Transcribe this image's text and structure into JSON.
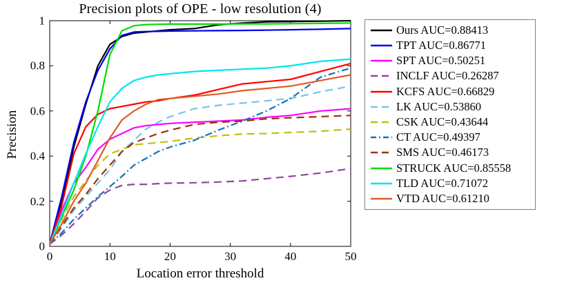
{
  "chart_data": {
    "type": "line",
    "title": "Precision plots of OPE - low resolution (4)",
    "xlabel": "Location error threshold",
    "ylabel": "Precision",
    "xlim": [
      0,
      50
    ],
    "ylim": [
      0,
      1
    ],
    "xticks": [
      "0",
      "10",
      "20",
      "30",
      "40",
      "50"
    ],
    "yticks": [
      "0",
      "0.2",
      "0.4",
      "0.6",
      "0.8",
      "1"
    ],
    "grid": false,
    "legend_position": "outside-right",
    "x": [
      0,
      2,
      4,
      6,
      8,
      10,
      12,
      14,
      16,
      18,
      20,
      24,
      28,
      32,
      36,
      40,
      45,
      50
    ],
    "series": [
      {
        "name": "Ours",
        "label": "Ours AUC=0.88413",
        "auc": 0.88413,
        "color": "#000000",
        "style": "solid",
        "values": [
          0.01,
          0.2,
          0.44,
          0.63,
          0.8,
          0.895,
          0.93,
          0.945,
          0.95,
          0.955,
          0.96,
          0.965,
          0.982,
          0.99,
          0.995,
          0.996,
          0.998,
          1.0
        ]
      },
      {
        "name": "TPT",
        "label": "TPT AUC=0.86771",
        "auc": 0.86771,
        "color": "#0000ee",
        "style": "solid",
        "values": [
          0.01,
          0.22,
          0.46,
          0.64,
          0.78,
          0.875,
          0.935,
          0.95,
          0.952,
          0.953,
          0.954,
          0.955,
          0.956,
          0.957,
          0.958,
          0.96,
          0.962,
          0.965
        ]
      },
      {
        "name": "SPT",
        "label": "SPT AUC=0.50251",
        "auc": 0.50251,
        "color": "#ff00ff",
        "style": "solid",
        "values": [
          0.01,
          0.16,
          0.28,
          0.35,
          0.43,
          0.475,
          0.5,
          0.525,
          0.535,
          0.54,
          0.545,
          0.55,
          0.555,
          0.56,
          0.572,
          0.58,
          0.6,
          0.61
        ]
      },
      {
        "name": "INCLF",
        "label": "INCLF AUC=0.26287",
        "auc": 0.26287,
        "color": "#9146a0",
        "style": "dashed",
        "values": [
          0.01,
          0.05,
          0.1,
          0.155,
          0.215,
          0.25,
          0.27,
          0.275,
          0.275,
          0.278,
          0.28,
          0.282,
          0.285,
          0.29,
          0.3,
          0.31,
          0.325,
          0.345
        ]
      },
      {
        "name": "KCFS",
        "label": "KCFS AUC=0.66829",
        "auc": 0.66829,
        "color": "#ff0000",
        "style": "solid",
        "values": [
          0.01,
          0.18,
          0.41,
          0.53,
          0.585,
          0.61,
          0.62,
          0.63,
          0.64,
          0.645,
          0.655,
          0.67,
          0.695,
          0.72,
          0.73,
          0.74,
          0.775,
          0.81
        ]
      },
      {
        "name": "LK",
        "label": "LK AUC=0.53860",
        "auc": 0.5386,
        "color": "#76c4e8",
        "style": "dashed",
        "values": [
          0.01,
          0.08,
          0.16,
          0.22,
          0.28,
          0.34,
          0.42,
          0.47,
          0.52,
          0.55,
          0.575,
          0.61,
          0.625,
          0.635,
          0.645,
          0.655,
          0.685,
          0.71
        ]
      },
      {
        "name": "CSK",
        "label": "CSK AUC=0.43644",
        "auc": 0.43644,
        "color": "#bfbf12",
        "style": "dashed",
        "values": [
          0.01,
          0.12,
          0.22,
          0.29,
          0.36,
          0.41,
          0.43,
          0.45,
          0.455,
          0.46,
          0.465,
          0.48,
          0.49,
          0.498,
          0.5,
          0.505,
          0.51,
          0.52
        ]
      },
      {
        "name": "CT",
        "label": "CT AUC=0.49397",
        "auc": 0.49397,
        "color": "#1272b8",
        "style": "dashdot",
        "values": [
          0.01,
          0.06,
          0.12,
          0.17,
          0.22,
          0.265,
          0.31,
          0.36,
          0.39,
          0.42,
          0.44,
          0.47,
          0.515,
          0.555,
          0.6,
          0.655,
          0.75,
          0.79
        ]
      },
      {
        "name": "SMS",
        "label": "SMS AUC=0.46173",
        "auc": 0.46173,
        "color": "#9c3208",
        "style": "dashed",
        "values": [
          0.01,
          0.09,
          0.17,
          0.23,
          0.3,
          0.36,
          0.42,
          0.46,
          0.48,
          0.5,
          0.515,
          0.54,
          0.55,
          0.555,
          0.565,
          0.57,
          0.575,
          0.58
        ]
      },
      {
        "name": "STRUCK",
        "label": "STRUCK AUC=0.85558",
        "auc": 0.85558,
        "color": "#00dd00",
        "style": "solid",
        "values": [
          0.01,
          0.13,
          0.25,
          0.4,
          0.6,
          0.85,
          0.955,
          0.978,
          0.983,
          0.984,
          0.985,
          0.985,
          0.985,
          0.986,
          0.986,
          0.987,
          0.988,
          0.99
        ]
      },
      {
        "name": "TLD",
        "label": "TLD AUC=0.71072",
        "auc": 0.71072,
        "color": "#00e5ee",
        "style": "solid",
        "values": [
          0.01,
          0.14,
          0.28,
          0.41,
          0.53,
          0.64,
          0.7,
          0.735,
          0.75,
          0.76,
          0.765,
          0.775,
          0.78,
          0.785,
          0.79,
          0.8,
          0.82,
          0.83
        ]
      },
      {
        "name": "VTD",
        "label": "VTD AUC=0.61210",
        "auc": 0.6121,
        "color": "#df5b24",
        "style": "solid",
        "values": [
          0.01,
          0.1,
          0.2,
          0.28,
          0.38,
          0.48,
          0.56,
          0.6,
          0.63,
          0.65,
          0.655,
          0.665,
          0.675,
          0.69,
          0.7,
          0.71,
          0.735,
          0.76
        ]
      }
    ]
  }
}
